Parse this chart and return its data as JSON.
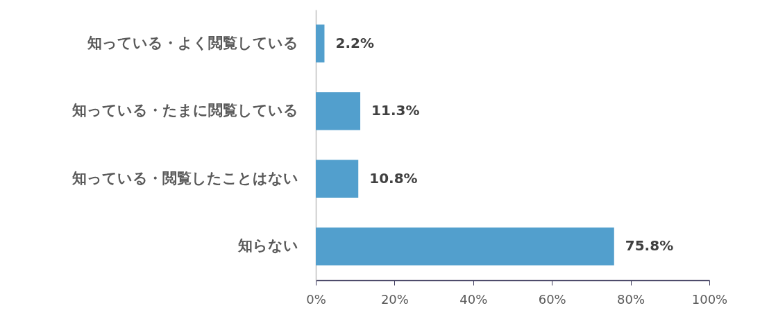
{
  "chart_data": {
    "type": "bar",
    "orientation": "horizontal",
    "categories": [
      "知っている・よく閲覧している",
      "知っている・たまに閲覧している",
      "知っている・閲覧したことはない",
      "知らない"
    ],
    "values": [
      2.2,
      11.3,
      10.8,
      75.8
    ],
    "value_labels": [
      "2.2%",
      "11.3%",
      "10.8%",
      "75.8%"
    ],
    "color": "#529fcd",
    "xlim": [
      0,
      100
    ],
    "xticks": [
      {
        "value": 0,
        "label": "0%"
      },
      {
        "value": 20,
        "label": "20%"
      },
      {
        "value": 40,
        "label": "40%"
      },
      {
        "value": 60,
        "label": "60%"
      },
      {
        "value": 80,
        "label": "80%"
      },
      {
        "value": 100,
        "label": "100%"
      }
    ],
    "grid": false
  }
}
